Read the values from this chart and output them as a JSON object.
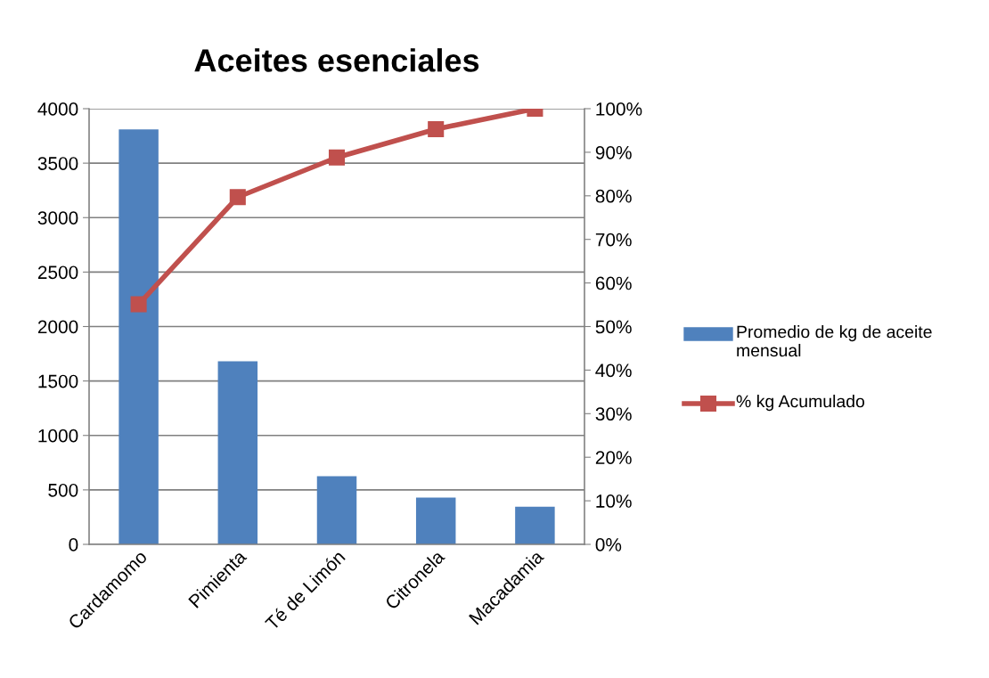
{
  "chart_data": {
    "type": "bar",
    "title": "Aceites esenciales",
    "categories": [
      "Cardamomo",
      "Pimienta",
      "Té de Limón",
      "Citronela",
      "Macadamia"
    ],
    "series": [
      {
        "name": "Promedio de kg de aceite mensual",
        "color": "#4f81bd",
        "values": [
          3810,
          1680,
          625,
          430,
          345
        ]
      },
      {
        "name": "% kg Acumulado",
        "type": "line",
        "axis": "y2",
        "color": "#c0504d",
        "marker": "square",
        "values": [
          55.1,
          79.7,
          88.8,
          95.3,
          100
        ]
      }
    ],
    "ylim": [
      0,
      4000
    ],
    "yticks": [
      0,
      500,
      1000,
      1500,
      2000,
      2500,
      3000,
      3500,
      4000
    ],
    "y2lim": [
      0,
      100
    ],
    "y2ticks": [
      {
        "value": 0,
        "label": "0%"
      },
      {
        "value": 10,
        "label": "10%"
      },
      {
        "value": 20,
        "label": "20%"
      },
      {
        "value": 30,
        "label": "30%"
      },
      {
        "value": 40,
        "label": "40%"
      },
      {
        "value": 50,
        "label": "50%"
      },
      {
        "value": 60,
        "label": "60%"
      },
      {
        "value": 70,
        "label": "70%"
      },
      {
        "value": 80,
        "label": "80%"
      },
      {
        "value": 90,
        "label": "90%"
      },
      {
        "value": 100,
        "label": "100%"
      }
    ],
    "grid": "y",
    "legend": "right"
  }
}
